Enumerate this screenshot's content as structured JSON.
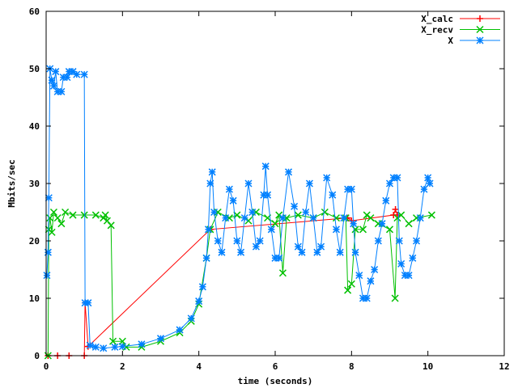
{
  "chart_data": {
    "type": "line",
    "title": "",
    "xlabel": "time (seconds)",
    "ylabel": "Mbits/sec",
    "xlim": [
      0,
      12
    ],
    "ylim": [
      0,
      60
    ],
    "xticks": [
      0,
      2,
      4,
      6,
      8,
      10,
      12
    ],
    "yticks": [
      0,
      10,
      20,
      30,
      40,
      50,
      60
    ],
    "grid": false,
    "legend_position": "top-right",
    "series": [
      {
        "name": "X_calc",
        "color": "#ff0000",
        "marker": "plus",
        "points": [
          [
            0.05,
            0
          ],
          [
            0.3,
            0
          ],
          [
            0.6,
            0
          ],
          [
            1.0,
            0
          ],
          [
            1.02,
            9.2
          ],
          [
            1.1,
            1.6
          ],
          [
            4.3,
            22
          ],
          [
            7.9,
            24
          ],
          [
            8.0,
            23.5
          ],
          [
            9.1,
            24.5
          ],
          [
            9.15,
            25.5
          ],
          [
            9.2,
            24.5
          ]
        ]
      },
      {
        "name": "X_recv",
        "color": "#00c000",
        "marker": "x",
        "points": [
          [
            0.05,
            0
          ],
          [
            0.07,
            22
          ],
          [
            0.1,
            24
          ],
          [
            0.15,
            21.5
          ],
          [
            0.2,
            25
          ],
          [
            0.3,
            24
          ],
          [
            0.4,
            23
          ],
          [
            0.5,
            25
          ],
          [
            0.7,
            24.5
          ],
          [
            1.0,
            24.5
          ],
          [
            1.3,
            24.5
          ],
          [
            1.5,
            24
          ],
          [
            1.55,
            24.5
          ],
          [
            1.6,
            23.5
          ],
          [
            1.7,
            22.7
          ],
          [
            1.75,
            2.5
          ],
          [
            2.0,
            2.5
          ],
          [
            2.1,
            1.5
          ],
          [
            2.5,
            1.5
          ],
          [
            3.0,
            2.5
          ],
          [
            3.5,
            4
          ],
          [
            3.8,
            6
          ],
          [
            4.0,
            9
          ],
          [
            4.2,
            17
          ],
          [
            4.3,
            22
          ],
          [
            4.5,
            25
          ],
          [
            4.8,
            24
          ],
          [
            5.0,
            24.5
          ],
          [
            5.3,
            23.5
          ],
          [
            5.5,
            25
          ],
          [
            5.8,
            24
          ],
          [
            6.0,
            23
          ],
          [
            6.1,
            24.5
          ],
          [
            6.2,
            14.4
          ],
          [
            6.3,
            24
          ],
          [
            6.6,
            24.5
          ],
          [
            7.0,
            24
          ],
          [
            7.3,
            25
          ],
          [
            7.6,
            24
          ],
          [
            7.85,
            24
          ],
          [
            7.9,
            11.4
          ],
          [
            8.0,
            12.5
          ],
          [
            8.1,
            22
          ],
          [
            8.3,
            22
          ],
          [
            8.4,
            24.5
          ],
          [
            8.5,
            24
          ],
          [
            8.7,
            23
          ],
          [
            9.0,
            22
          ],
          [
            9.14,
            10
          ],
          [
            9.2,
            24
          ],
          [
            9.3,
            24.5
          ],
          [
            9.5,
            23
          ],
          [
            9.7,
            24
          ],
          [
            10.1,
            24.5
          ]
        ]
      },
      {
        "name": "X",
        "color": "#0080ff",
        "marker": "star",
        "points": [
          [
            0.02,
            14
          ],
          [
            0.05,
            18
          ],
          [
            0.07,
            27.5
          ],
          [
            0.1,
            50
          ],
          [
            0.15,
            48
          ],
          [
            0.2,
            47
          ],
          [
            0.25,
            49.5
          ],
          [
            0.3,
            46
          ],
          [
            0.4,
            46
          ],
          [
            0.45,
            48.5
          ],
          [
            0.55,
            48.5
          ],
          [
            0.6,
            49.5
          ],
          [
            0.7,
            49.5
          ],
          [
            0.8,
            49
          ],
          [
            1.0,
            49
          ],
          [
            1.02,
            9.2
          ],
          [
            1.1,
            9.2
          ],
          [
            1.15,
            1.8
          ],
          [
            1.3,
            1.5
          ],
          [
            1.5,
            1.3
          ],
          [
            1.8,
            1.5
          ],
          [
            2.0,
            1.6
          ],
          [
            2.5,
            2.0
          ],
          [
            3.0,
            3
          ],
          [
            3.5,
            4.5
          ],
          [
            3.8,
            6.5
          ],
          [
            4.0,
            9.5
          ],
          [
            4.1,
            12
          ],
          [
            4.2,
            17
          ],
          [
            4.25,
            22
          ],
          [
            4.3,
            30
          ],
          [
            4.35,
            32
          ],
          [
            4.4,
            25
          ],
          [
            4.5,
            20
          ],
          [
            4.6,
            18
          ],
          [
            4.7,
            24
          ],
          [
            4.8,
            29
          ],
          [
            4.9,
            27
          ],
          [
            5.0,
            20
          ],
          [
            5.1,
            18
          ],
          [
            5.2,
            24
          ],
          [
            5.3,
            30
          ],
          [
            5.4,
            25
          ],
          [
            5.5,
            19
          ],
          [
            5.6,
            20
          ],
          [
            5.7,
            28
          ],
          [
            5.75,
            33
          ],
          [
            5.8,
            28
          ],
          [
            5.9,
            22
          ],
          [
            6.0,
            17
          ],
          [
            6.1,
            17
          ],
          [
            6.2,
            24
          ],
          [
            6.35,
            32
          ],
          [
            6.5,
            26
          ],
          [
            6.6,
            19
          ],
          [
            6.7,
            18
          ],
          [
            6.8,
            25
          ],
          [
            6.9,
            30
          ],
          [
            7.0,
            24
          ],
          [
            7.1,
            18
          ],
          [
            7.2,
            19
          ],
          [
            7.35,
            31
          ],
          [
            7.5,
            28
          ],
          [
            7.6,
            22
          ],
          [
            7.7,
            18
          ],
          [
            7.8,
            24
          ],
          [
            7.9,
            29
          ],
          [
            8.0,
            29
          ],
          [
            8.05,
            23
          ],
          [
            8.1,
            18
          ],
          [
            8.2,
            14
          ],
          [
            8.3,
            10
          ],
          [
            8.4,
            10
          ],
          [
            8.5,
            13
          ],
          [
            8.6,
            15
          ],
          [
            8.7,
            20
          ],
          [
            8.8,
            23
          ],
          [
            8.9,
            27
          ],
          [
            9.0,
            30
          ],
          [
            9.1,
            31
          ],
          [
            9.2,
            31
          ],
          [
            9.25,
            20
          ],
          [
            9.3,
            16
          ],
          [
            9.4,
            14
          ],
          [
            9.5,
            14
          ],
          [
            9.6,
            17
          ],
          [
            9.7,
            20
          ],
          [
            9.8,
            24
          ],
          [
            9.9,
            29
          ],
          [
            10.0,
            31
          ],
          [
            10.05,
            30
          ]
        ]
      }
    ]
  }
}
